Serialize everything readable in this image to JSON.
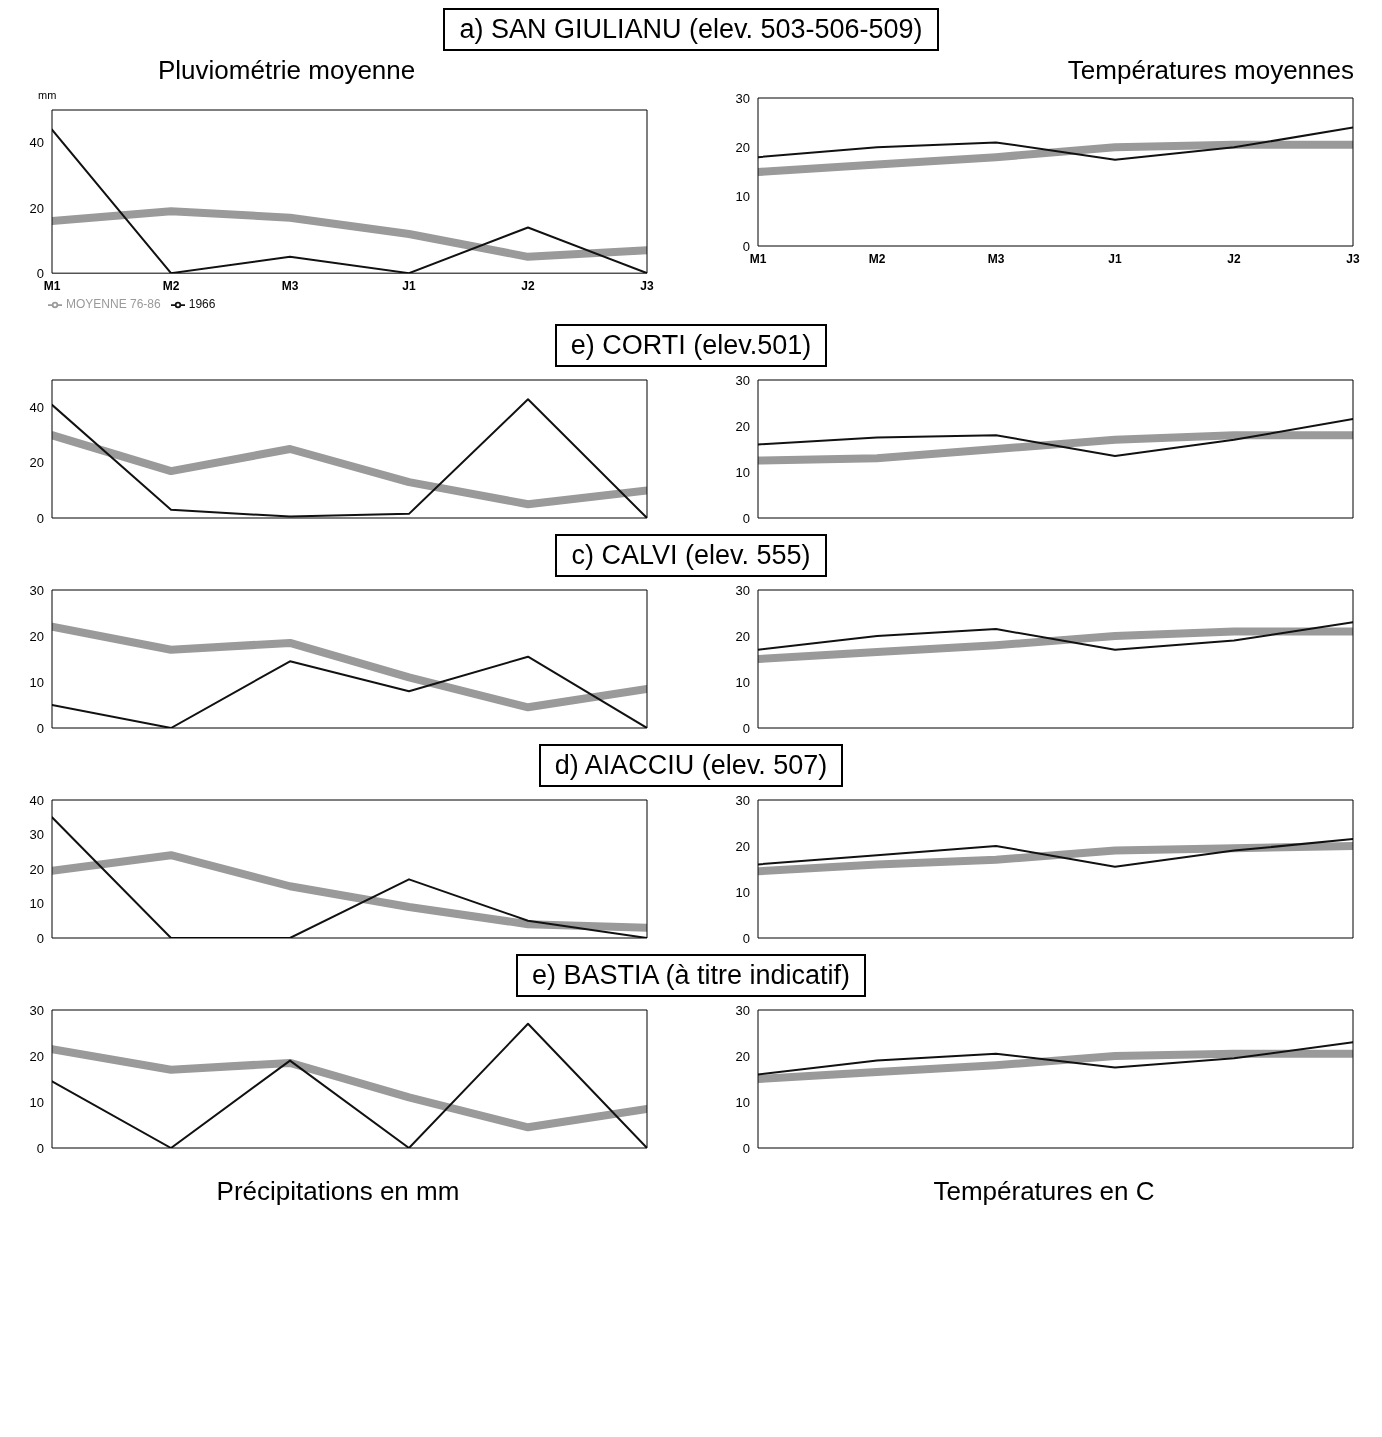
{
  "chart_data": [
    {
      "type": "line",
      "title": "a) SAN GIULIANU (elev. 503-506-509)",
      "subtitle": "Pluviométrie moyenne",
      "ylabel": "mm",
      "categories": [
        "M1",
        "M2",
        "M3",
        "J1",
        "J2",
        "J3"
      ],
      "ylim": [
        0,
        50
      ],
      "yticks": [
        0,
        20,
        40
      ],
      "grid": false,
      "marker": "none",
      "legend": "bottom left",
      "series": [
        {
          "name": "MOYENNE 76-86",
          "color": "#9a9a9a",
          "values": [
            16,
            19,
            17,
            12,
            5,
            7
          ]
        },
        {
          "name": "1966",
          "color": "#111111",
          "values": [
            44,
            0,
            5,
            0,
            14,
            0
          ]
        }
      ]
    },
    {
      "type": "line",
      "subtitle": "Températures moyennes",
      "categories": [
        "M1",
        "M2",
        "M3",
        "J1",
        "J2",
        "J3"
      ],
      "ylim": [
        0,
        30
      ],
      "yticks": [
        0,
        10,
        20,
        30
      ],
      "grid": false,
      "marker": "none",
      "series": [
        {
          "color": "#9a9a9a",
          "values": [
            15,
            16.5,
            18,
            20,
            20.5,
            20.5
          ]
        },
        {
          "color": "#111111",
          "values": [
            18,
            20,
            21,
            17.5,
            20,
            24
          ]
        }
      ]
    },
    {
      "type": "line",
      "title": "e) CORTI (elev.501)",
      "categories": [
        null,
        null,
        null,
        null,
        null,
        null
      ],
      "ylim": [
        0,
        50
      ],
      "yticks": [
        0,
        20,
        40
      ],
      "grid": false,
      "marker": "none",
      "series": [
        {
          "color": "#9a9a9a",
          "values": [
            30,
            17,
            25,
            13,
            5,
            10
          ]
        },
        {
          "color": "#111111",
          "values": [
            41,
            3,
            0.5,
            1.5,
            43,
            0
          ]
        }
      ]
    },
    {
      "type": "line",
      "categories": [
        null,
        null,
        null,
        null,
        null,
        null
      ],
      "ylim": [
        0,
        30
      ],
      "yticks": [
        0,
        10,
        20,
        30
      ],
      "grid": false,
      "marker": "none",
      "series": [
        {
          "color": "#9a9a9a",
          "values": [
            12.5,
            13,
            15,
            17,
            18,
            18
          ]
        },
        {
          "color": "#111111",
          "values": [
            16,
            17.5,
            18,
            13.5,
            17,
            21.5
          ]
        }
      ]
    },
    {
      "type": "line",
      "title": "c) CALVI (elev. 555)",
      "categories": [
        null,
        null,
        null,
        null,
        null,
        null
      ],
      "ylim": [
        0,
        30
      ],
      "yticks": [
        0,
        10,
        20,
        30
      ],
      "grid": false,
      "marker": "none",
      "series": [
        {
          "color": "#9a9a9a",
          "values": [
            22,
            17,
            18.5,
            11,
            4.5,
            8.5
          ]
        },
        {
          "color": "#111111",
          "values": [
            5,
            0,
            14.5,
            8,
            15.5,
            0
          ]
        }
      ]
    },
    {
      "type": "line",
      "categories": [
        null,
        null,
        null,
        null,
        null,
        null
      ],
      "ylim": [
        0,
        30
      ],
      "yticks": [
        0,
        10,
        20,
        30
      ],
      "grid": false,
      "marker": "none",
      "series": [
        {
          "color": "#9a9a9a",
          "values": [
            15,
            16.5,
            18,
            20,
            21,
            21
          ]
        },
        {
          "color": "#111111",
          "values": [
            17,
            20,
            21.5,
            17,
            19,
            23
          ]
        }
      ]
    },
    {
      "type": "line",
      "title": "d) AIACCIU (elev. 507)",
      "categories": [
        null,
        null,
        null,
        null,
        null,
        null
      ],
      "ylim": [
        0,
        40
      ],
      "yticks": [
        0,
        10,
        20,
        30,
        40
      ],
      "grid": false,
      "marker": "none",
      "series": [
        {
          "color": "#9a9a9a",
          "values": [
            19.5,
            24,
            15,
            9,
            4,
            3
          ]
        },
        {
          "color": "#111111",
          "values": [
            35,
            0,
            0,
            17,
            5,
            0
          ]
        }
      ]
    },
    {
      "type": "line",
      "categories": [
        null,
        null,
        null,
        null,
        null,
        null
      ],
      "ylim": [
        0,
        30
      ],
      "yticks": [
        0,
        10,
        20,
        30
      ],
      "grid": false,
      "marker": "none",
      "series": [
        {
          "color": "#9a9a9a",
          "values": [
            14.5,
            16,
            17,
            19,
            19.5,
            20
          ]
        },
        {
          "color": "#111111",
          "values": [
            16,
            18,
            20,
            15.5,
            19,
            21.5
          ]
        }
      ]
    },
    {
      "type": "line",
      "title": "e) BASTIA (à titre indicatif)",
      "xlabel": "Précipitations en mm",
      "categories": [
        null,
        null,
        null,
        null,
        null,
        null
      ],
      "ylim": [
        0,
        30
      ],
      "yticks": [
        0,
        10,
        20,
        30
      ],
      "grid": false,
      "marker": "none",
      "series": [
        {
          "color": "#9a9a9a",
          "values": [
            21.5,
            17,
            18.5,
            11,
            4.5,
            8.5
          ]
        },
        {
          "color": "#111111",
          "values": [
            14.5,
            0,
            19,
            0,
            27,
            0
          ]
        }
      ]
    },
    {
      "type": "line",
      "xlabel": "Températures en  C",
      "categories": [
        null,
        null,
        null,
        null,
        null,
        null
      ],
      "ylim": [
        0,
        30
      ],
      "yticks": [
        0,
        10,
        20,
        30
      ],
      "grid": false,
      "marker": "none",
      "series": [
        {
          "color": "#9a9a9a",
          "values": [
            15,
            16.5,
            18,
            20,
            20.5,
            20.5
          ]
        },
        {
          "color": "#111111",
          "values": [
            16,
            19,
            20.5,
            17.5,
            19.5,
            23
          ]
        }
      ]
    }
  ]
}
